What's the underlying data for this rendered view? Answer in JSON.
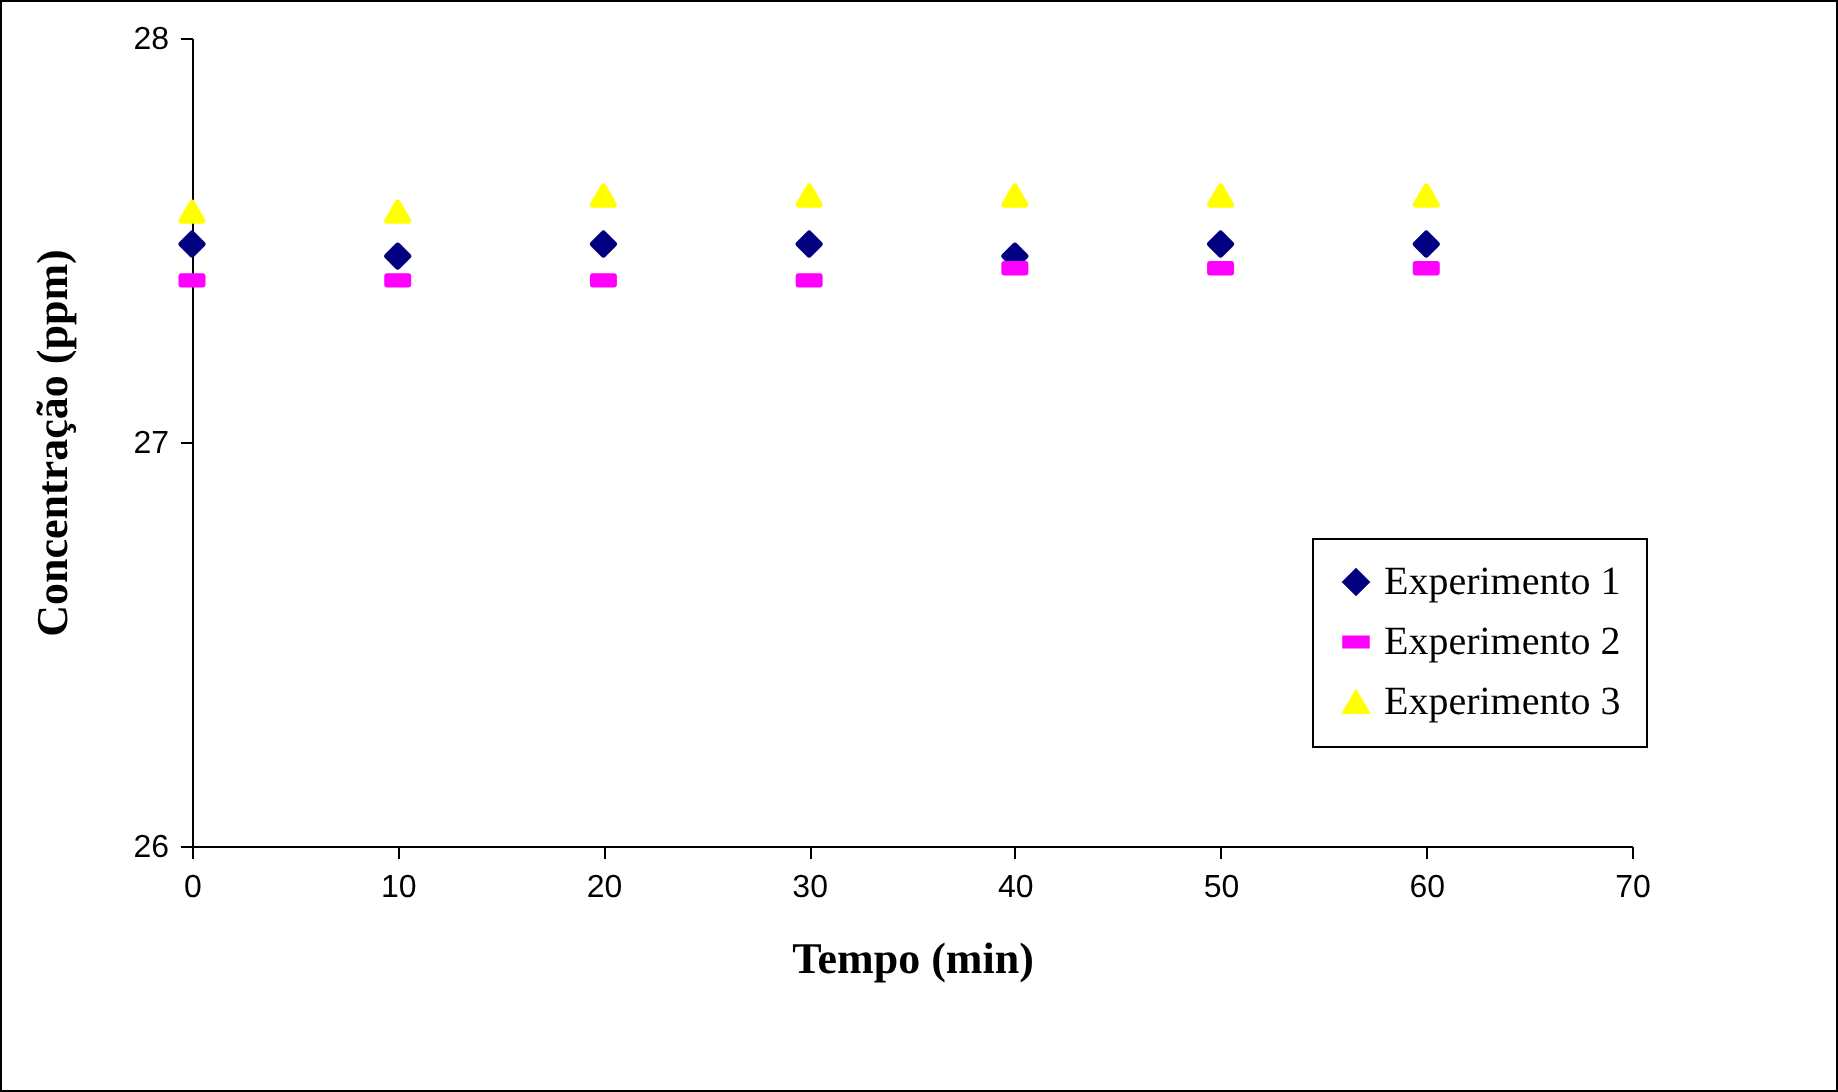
{
  "chart_data": {
    "type": "scatter",
    "xlabel": "Tempo (min)",
    "ylabel": "Concentração (ppm)",
    "x": [
      0,
      10,
      20,
      30,
      40,
      50,
      60
    ],
    "series": [
      {
        "name": "Experimento 1",
        "color": "#000080",
        "marker": "diamond",
        "values": [
          27.49,
          27.46,
          27.49,
          27.49,
          27.46,
          27.49,
          27.49
        ]
      },
      {
        "name": "Experimento 2",
        "color": "#ff00ff",
        "values": [
          27.4,
          27.4,
          27.4,
          27.4,
          27.43,
          27.43,
          27.43
        ]
      },
      {
        "name": "Experimento 3",
        "color": "#ffff00",
        "marker": "triangle",
        "values": [
          27.57,
          27.57,
          27.61,
          27.61,
          27.61,
          27.61,
          27.61
        ]
      }
    ],
    "xlim": [
      0,
      70
    ],
    "xticks": [
      0,
      10,
      20,
      30,
      40,
      50,
      60,
      70
    ],
    "ylim": [
      26,
      28
    ],
    "yticks": [
      26,
      27,
      28
    ],
    "grid": false,
    "legend": "bottom right"
  }
}
